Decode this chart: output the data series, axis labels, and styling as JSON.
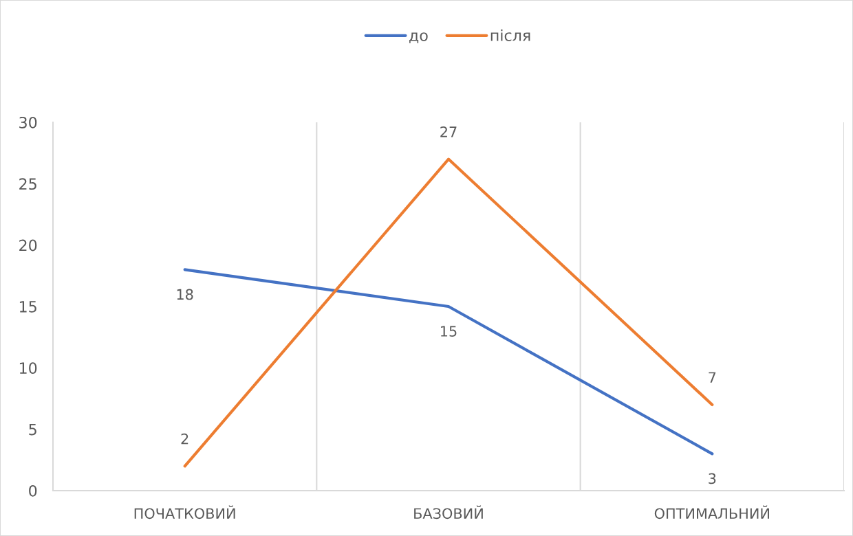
{
  "chart_data": {
    "type": "line",
    "categories": [
      "ПОЧАТКОВИЙ",
      "БАЗОВИЙ",
      "ОПТИМАЛЬНИЙ"
    ],
    "series": [
      {
        "name": "до",
        "color": "#4472c4",
        "values": [
          18,
          15,
          3
        ]
      },
      {
        "name": "після",
        "color": "#ed7d31",
        "values": [
          2,
          27,
          7
        ]
      }
    ],
    "ylim": [
      0,
      30
    ],
    "yticks": [
      0,
      5,
      10,
      15,
      20,
      25,
      30
    ],
    "grid": "x",
    "legend": "top",
    "marker": "none",
    "line_style": "solid",
    "data_labels": true
  }
}
